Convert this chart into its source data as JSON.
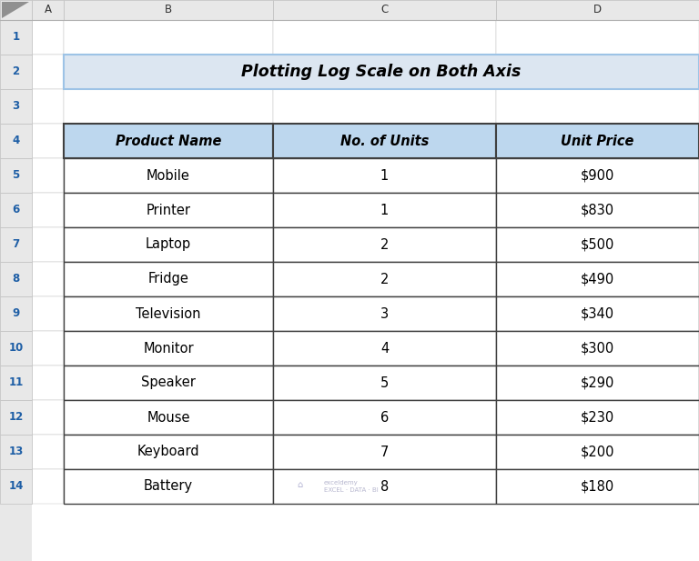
{
  "title": "Plotting Log Scale on Both Axis",
  "title_bg_color": "#dce6f1",
  "title_border_color": "#9dc3e6",
  "header_bg_color": "#bdd7ee",
  "row_bg_color": "#ffffff",
  "col_headers": [
    "Product Name",
    "No. of Units",
    "Unit Price"
  ],
  "rows": [
    [
      "Mobile",
      "1",
      "$900"
    ],
    [
      "Printer",
      "1",
      "$830"
    ],
    [
      "Laptop",
      "2",
      "$500"
    ],
    [
      "Fridge",
      "2",
      "$490"
    ],
    [
      "Television",
      "3",
      "$340"
    ],
    [
      "Monitor",
      "4",
      "$300"
    ],
    [
      "Speaker",
      "5",
      "$290"
    ],
    [
      "Mouse",
      "6",
      "$230"
    ],
    [
      "Keyboard",
      "7",
      "$200"
    ],
    [
      "Battery",
      "8",
      "$180"
    ]
  ],
  "excel_bg": "#e8e8e8",
  "cell_bg": "#ffffff",
  "row_label_bg": "#e8e8e8",
  "col_label_bg": "#e8e8e8",
  "row_number_color": "#1f5fa6",
  "col_letter_color": "#333333",
  "grid_color": "#c0c0c0",
  "table_border_color": "#404040",
  "watermark_text": "exceldemy\nEXCEL · DATA · BI"
}
